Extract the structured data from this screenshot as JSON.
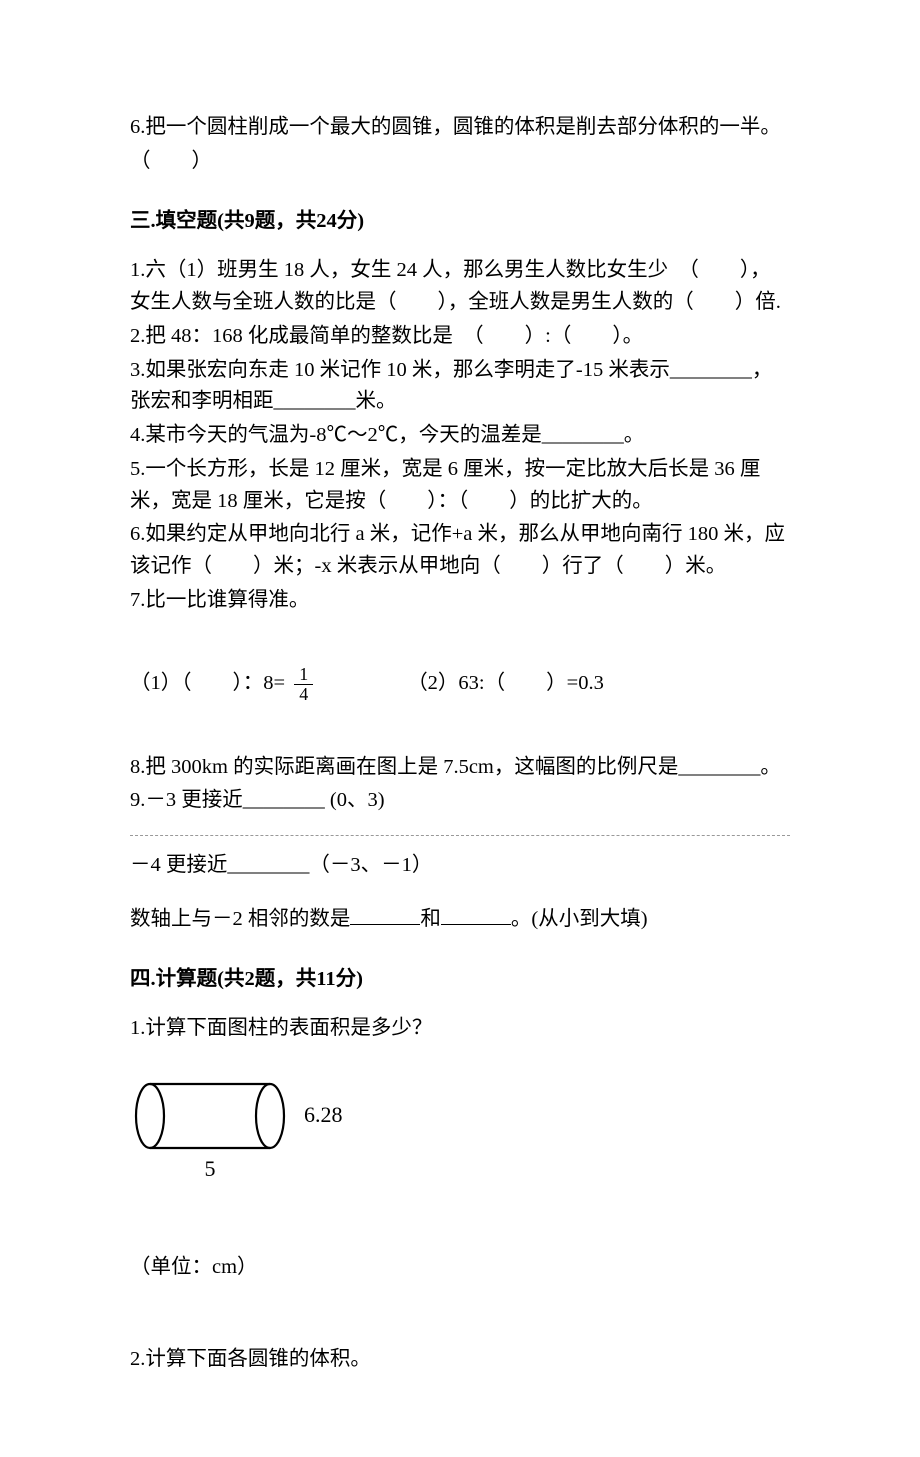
{
  "q6_prefix": "6.把一个圆柱削成一个最大的圆锥，圆锥的体积是削去部分体积的一半。",
  "q6_paren": "（　　）",
  "section3_title": "三.填空题(共9题，共24分)",
  "s3": {
    "q1": "1.六（1）班男生 18 人，女生 24 人，那么男生人数比女生少　（　　），女生人数与全班人数的比是（　　），全班人数是男生人数的（　　）倍.",
    "q2": "2.把 48：168 化成最简单的整数比是　（　　）:（　　）。",
    "q3": "3.如果张宏向东走 10 米记作 10 米，那么李明走了-15 米表示________，张宏和李明相距________米。",
    "q4": "4.某市今天的气温为-8℃～2℃，今天的温差是________。",
    "q5": "5.一个长方形，长是 12 厘米，宽是 6 厘米，按一定比放大后长是 36 厘米，宽是 18 厘米，它是按（　　）：（　　）的比扩大的。",
    "q6": "6.如果约定从甲地向北行 a 米，记作+a 米，那么从甲地向南行 180 米，应该记作（　　）米；-x 米表示从甲地向（　　）行了（　　）米。",
    "q7": "7.比一比谁算得准。",
    "q7_1_a": "（1）（　　）：8=",
    "q7_1_frac_n": "1",
    "q7_1_frac_d": "4",
    "q7_2": "（2）63:（　　）=0.3",
    "q8": "8.把 300km 的实际距离画在图上是 7.5cm，这幅图的比例尺是________。",
    "q9a": "9.－3 更接近________ (0、3)",
    "q9b": "－4 更接近________（－3、－1）",
    "q9c_pre": "数轴上与－2 相邻的数是",
    "q9c_mid": "和",
    "q9c_post": "。(从小到大填)"
  },
  "section4_title": "四.计算题(共2题，共11分)",
  "s4": {
    "q1": "1.计算下面图柱的表面积是多少？",
    "fig": {
      "length_label": "5",
      "right_label": "6.28",
      "ellipse_rx": 14,
      "ellipse_ry": 32,
      "rect_w": 120,
      "stroke": "#000000",
      "stroke_w": 2.2
    },
    "unit": "（单位：cm）",
    "q2": "2.计算下面各圆锥的体积。"
  }
}
